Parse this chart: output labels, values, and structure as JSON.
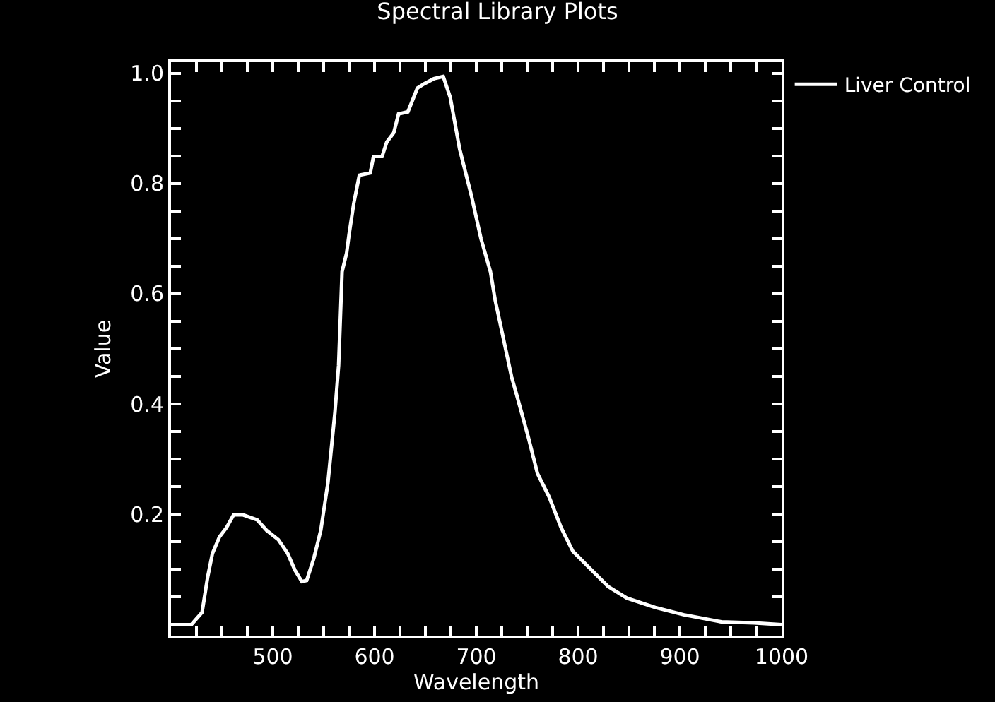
{
  "chart_data": {
    "type": "line",
    "title": "Spectral Library Plots",
    "xlabel": "Wavelength",
    "ylabel": "Value",
    "x": [
      400,
      420,
      430.5,
      436,
      440.7,
      447.6,
      454.6,
      461.5,
      470.8,
      484.7,
      493.9,
      505.5,
      514.7,
      521.7,
      528.6,
      533.3,
      540.3,
      547.2,
      554.2,
      561.1,
      564.7,
      568.1,
      572.6,
      575,
      579.6,
      585.1,
      595.8,
      599,
      607.4,
      612,
      618.9,
      623.6,
      632.8,
      642.1,
      649,
      658.3,
      667.5,
      674.4,
      683.7,
      695.3,
      704.6,
      713.9,
      718.5,
      734.7,
      739.3,
      750.8,
      760.1,
      771.7,
      783.3,
      794.9,
      811.1,
      829.6,
      848,
      875.8,
      903.6,
      940.7,
      973,
      1000
    ],
    "series": [
      {
        "name": "Liver Control",
        "color": "#ffffff",
        "values": [
          0,
          0,
          0.022,
          0.086,
          0.129,
          0.159,
          0.176,
          0.199,
          0.199,
          0.19,
          0.171,
          0.154,
          0.129,
          0.099,
          0.078,
          0.08,
          0.12,
          0.171,
          0.257,
          0.385,
          0.47,
          0.64,
          0.674,
          0.708,
          0.764,
          0.815,
          0.819,
          0.849,
          0.849,
          0.875,
          0.892,
          0.926,
          0.93,
          0.973,
          0.981,
          0.99,
          0.994,
          0.956,
          0.862,
          0.777,
          0.7,
          0.64,
          0.589,
          0.449,
          0.419,
          0.342,
          0.274,
          0.231,
          0.176,
          0.133,
          0.103,
          0.069,
          0.048,
          0.031,
          0.018,
          0.005,
          0.003,
          0
        ]
      }
    ],
    "xlim": [
      400,
      1000
    ],
    "ylim": [
      -0.02,
      1.02
    ],
    "xticks": [
      {
        "value": 400,
        "label": null
      },
      {
        "value": 425,
        "label": null
      },
      {
        "value": 450,
        "label": null
      },
      {
        "value": 475,
        "label": null
      },
      500,
      {
        "value": 525,
        "label": null
      },
      {
        "value": 550,
        "label": null
      },
      {
        "value": 575,
        "label": null
      },
      600,
      {
        "value": 625,
        "label": null
      },
      {
        "value": 650,
        "label": null
      },
      {
        "value": 675,
        "label": null
      },
      700,
      {
        "value": 725,
        "label": null
      },
      {
        "value": 750,
        "label": null
      },
      {
        "value": 775,
        "label": null
      },
      800,
      {
        "value": 825,
        "label": null
      },
      {
        "value": 850,
        "label": null
      },
      {
        "value": 875,
        "label": null
      },
      900,
      {
        "value": 925,
        "label": null
      },
      {
        "value": 950,
        "label": null
      },
      {
        "value": 975,
        "label": null
      },
      1000
    ],
    "yticks": [
      {
        "value": 0.05,
        "label": null
      },
      {
        "value": 0.1,
        "label": null
      },
      {
        "value": 0.15,
        "label": null
      },
      {
        "value": 0.2,
        "label": "0.2"
      },
      {
        "value": 0.25,
        "label": null
      },
      {
        "value": 0.3,
        "label": null
      },
      {
        "value": 0.35,
        "label": null
      },
      {
        "value": 0.4,
        "label": "0.4"
      },
      {
        "value": 0.45,
        "label": null
      },
      {
        "value": 0.5,
        "label": null
      },
      {
        "value": 0.55,
        "label": null
      },
      {
        "value": 0.6,
        "label": "0.6"
      },
      {
        "value": 0.65,
        "label": null
      },
      {
        "value": 0.7,
        "label": null
      },
      {
        "value": 0.75,
        "label": null
      },
      {
        "value": 0.8,
        "label": "0.8"
      },
      {
        "value": 0.85,
        "label": null
      },
      {
        "value": 0.9,
        "label": null
      },
      {
        "value": 0.95,
        "label": null
      },
      {
        "value": 1.0,
        "label": "1.0"
      }
    ],
    "grid": false,
    "legend": "top right",
    "marker": "none",
    "line_style": "solid"
  }
}
